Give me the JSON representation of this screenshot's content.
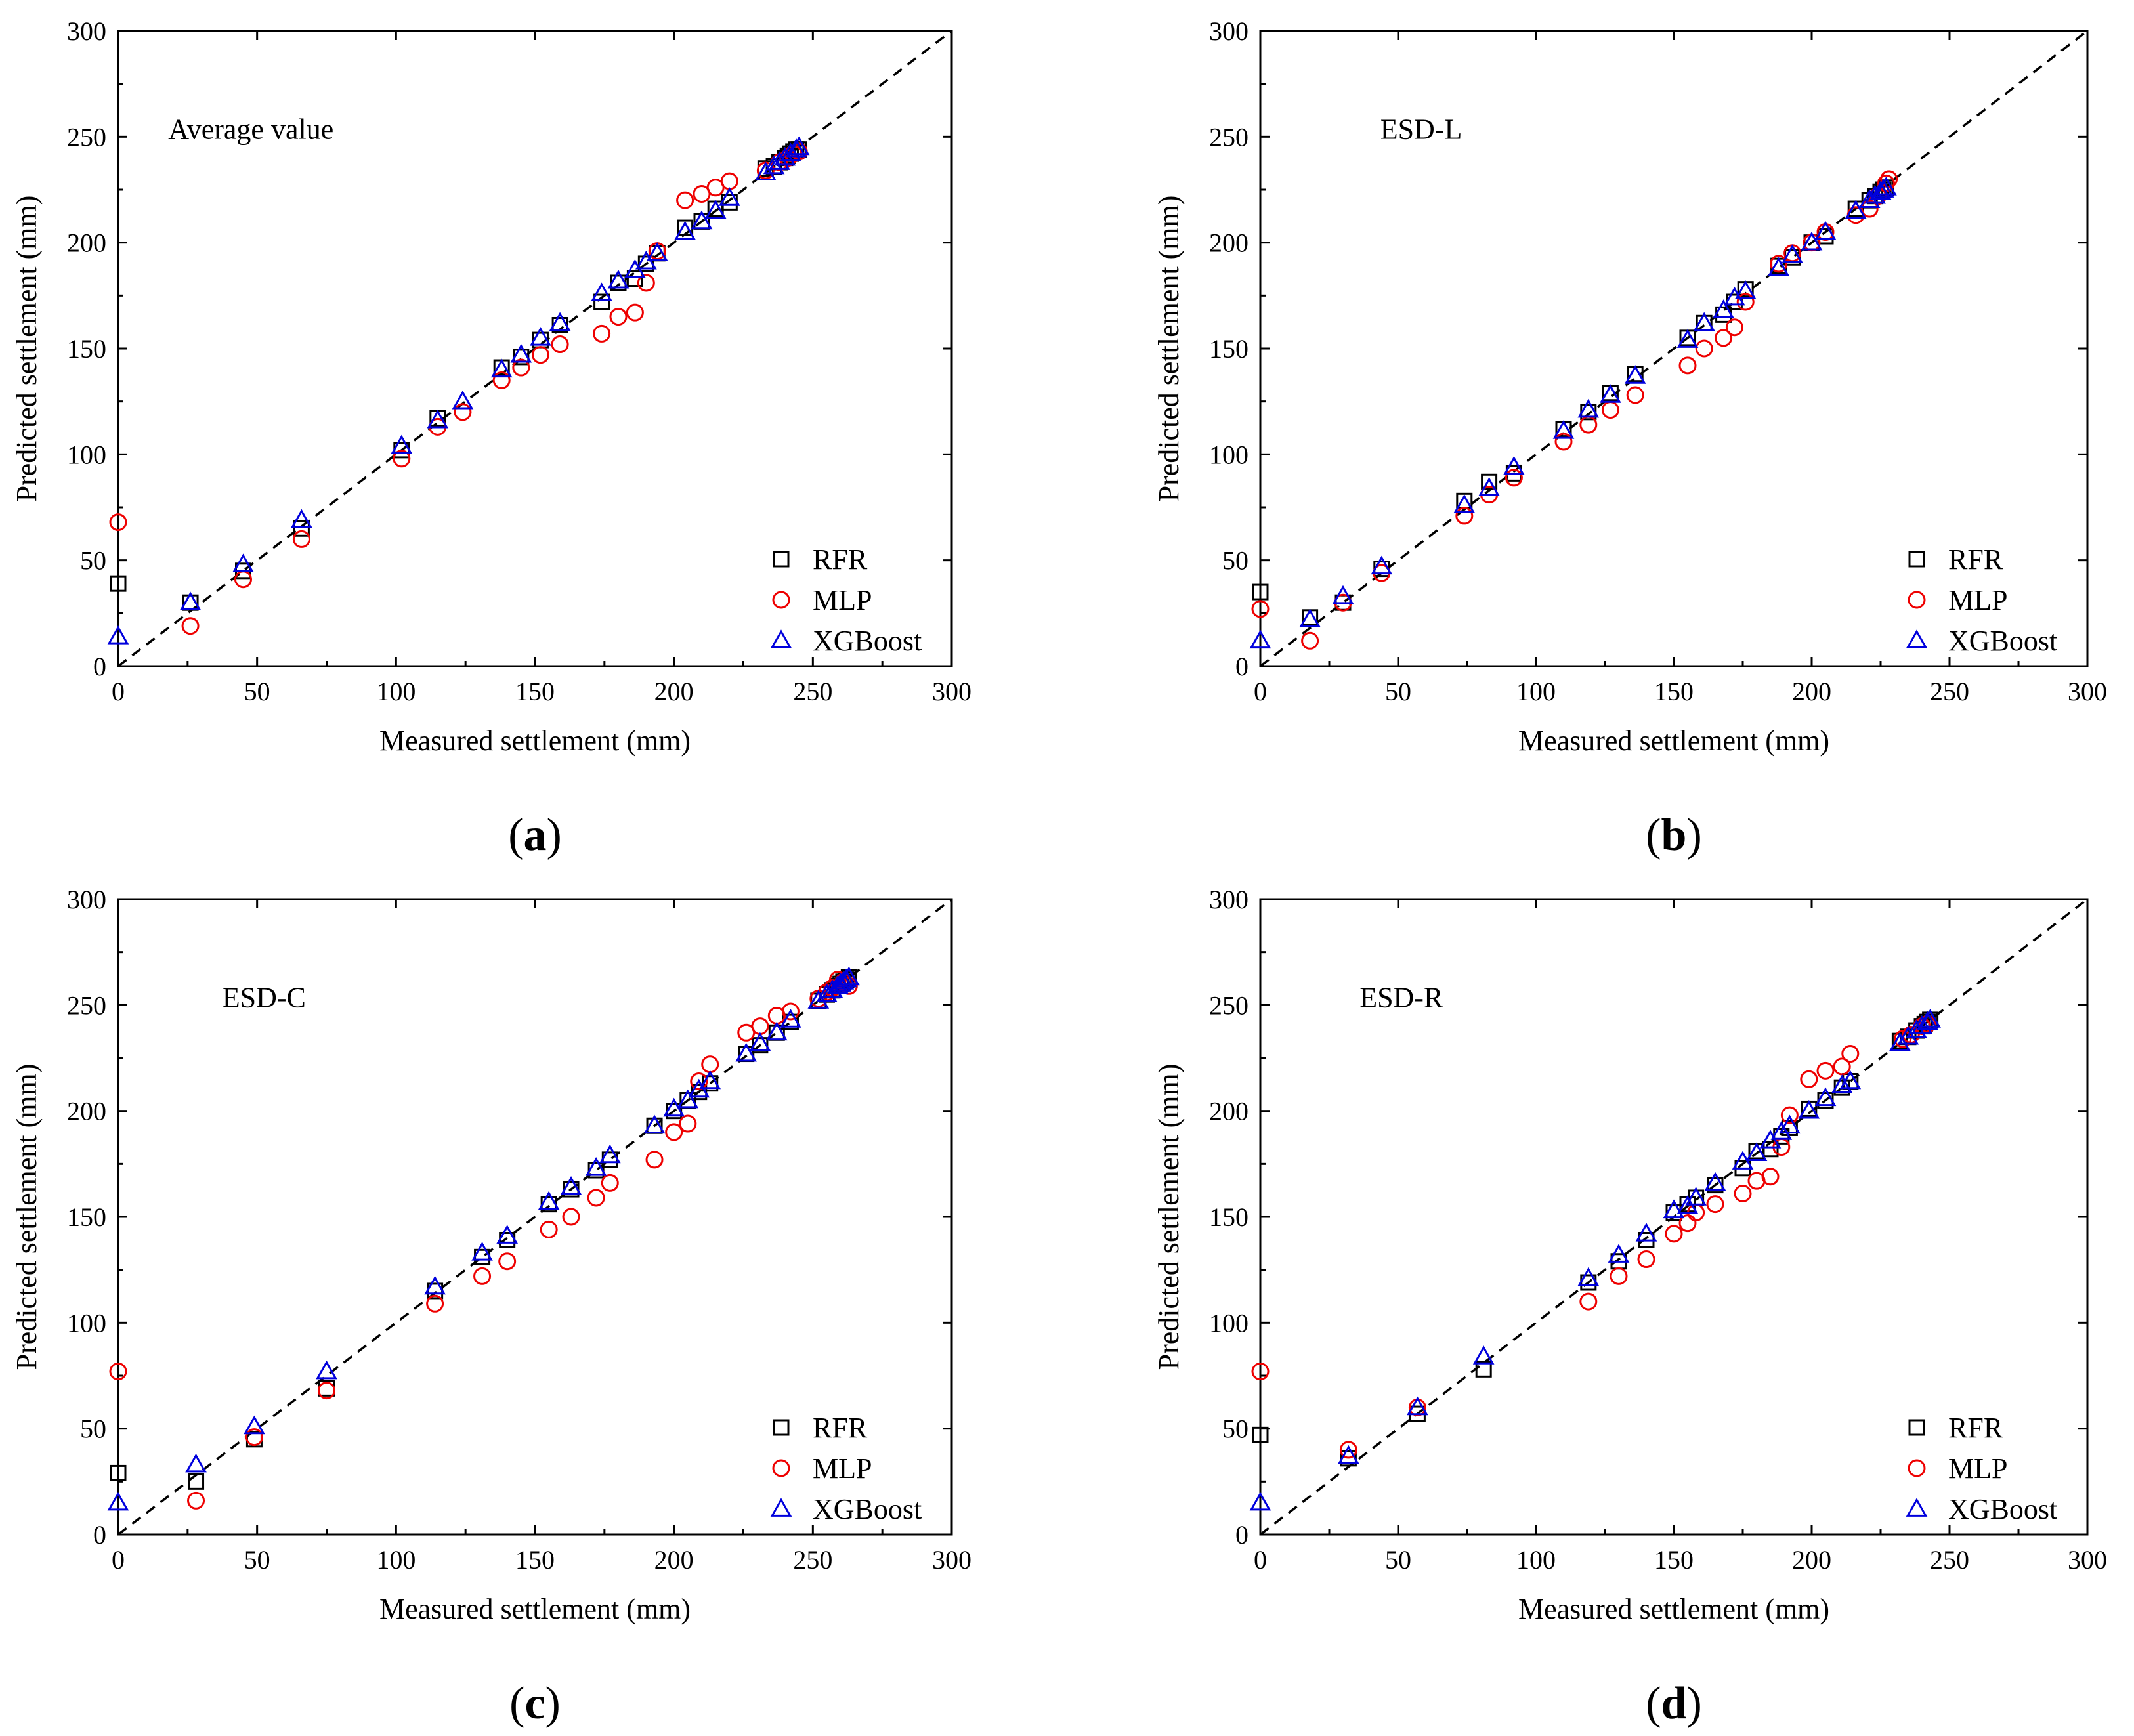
{
  "colors": {
    "RFR": "#000000",
    "MLP": "#ee0000",
    "XGBoost": "#0000dd",
    "diag": "#000000"
  },
  "chart_data": [
    {
      "id": "a",
      "type": "scatter",
      "panel_label": "a",
      "annotation": "Average value",
      "xlabel": "Measured settlement (mm)",
      "ylabel": "Predicted settlement (mm)",
      "xlim": [
        0,
        300
      ],
      "ylim": [
        0,
        300
      ],
      "xticks": [
        "0",
        "50",
        "100",
        "150",
        "200",
        "250",
        "300"
      ],
      "yticks": [
        "0",
        "50",
        "100",
        "150",
        "200",
        "250",
        "300"
      ],
      "reference_line": "y = x (dashed)",
      "series": [
        {
          "name": "RFR",
          "marker": "square",
          "x": [
            0,
            26,
            45,
            66,
            102,
            115,
            138,
            145,
            152,
            159,
            174,
            180,
            186,
            190,
            194,
            204,
            210,
            215,
            220,
            233,
            236,
            238,
            240,
            241,
            242,
            243,
            244,
            245
          ],
          "y": [
            39,
            30,
            45,
            65,
            102,
            117,
            141,
            146,
            154,
            161,
            172,
            181,
            183,
            190,
            195,
            207,
            210,
            216,
            219,
            235,
            236,
            238,
            240,
            241,
            242,
            243,
            244,
            244
          ]
        },
        {
          "name": "MLP",
          "marker": "circle",
          "x": [
            0,
            26,
            45,
            66,
            102,
            115,
            124,
            138,
            145,
            152,
            159,
            174,
            180,
            186,
            190,
            194,
            204,
            210,
            215,
            220,
            233,
            238,
            241,
            243,
            245
          ],
          "y": [
            68,
            19,
            41,
            60,
            98,
            113,
            120,
            135,
            141,
            147,
            152,
            157,
            165,
            167,
            181,
            196,
            220,
            223,
            226,
            229,
            234,
            238,
            240,
            242,
            243
          ]
        },
        {
          "name": "XGBoost",
          "marker": "triangle",
          "x": [
            0,
            26,
            45,
            66,
            102,
            115,
            124,
            138,
            145,
            152,
            159,
            174,
            180,
            186,
            190,
            194,
            204,
            210,
            215,
            220,
            233,
            236,
            238,
            240,
            242,
            244,
            245
          ],
          "y": [
            14,
            30,
            48,
            69,
            104,
            116,
            125,
            140,
            147,
            155,
            162,
            176,
            182,
            187,
            191,
            195,
            205,
            210,
            215,
            221,
            233,
            236,
            238,
            240,
            242,
            244,
            245
          ]
        }
      ]
    },
    {
      "id": "b",
      "type": "scatter",
      "panel_label": "b",
      "annotation": "ESD-L",
      "xlabel": "Measured settlement (mm)",
      "ylabel": "Predicted settlement (mm)",
      "xlim": [
        0,
        300
      ],
      "ylim": [
        0,
        300
      ],
      "xticks": [
        "0",
        "50",
        "100",
        "150",
        "200",
        "250",
        "300"
      ],
      "yticks": [
        "0",
        "50",
        "100",
        "150",
        "200",
        "250",
        "300"
      ],
      "reference_line": "y = x (dashed)",
      "series": [
        {
          "name": "RFR",
          "marker": "square",
          "x": [
            0,
            18,
            30,
            44,
            74,
            83,
            92,
            110,
            119,
            127,
            136,
            155,
            161,
            168,
            172,
            176,
            188,
            193,
            200,
            205,
            216,
            221,
            223,
            225,
            226,
            227
          ],
          "y": [
            35,
            23,
            30,
            46,
            78,
            87,
            91,
            112,
            120,
            129,
            138,
            155,
            162,
            166,
            172,
            178,
            189,
            193,
            200,
            203,
            216,
            220,
            222,
            224,
            225,
            226
          ]
        },
        {
          "name": "MLP",
          "marker": "circle",
          "x": [
            0,
            18,
            30,
            44,
            74,
            83,
            92,
            110,
            119,
            127,
            136,
            155,
            161,
            168,
            172,
            176,
            188,
            193,
            200,
            205,
            216,
            221,
            224,
            227,
            228
          ],
          "y": [
            27,
            12,
            30,
            44,
            71,
            81,
            89,
            106,
            114,
            121,
            128,
            142,
            150,
            155,
            160,
            172,
            190,
            195,
            200,
            205,
            213,
            216,
            222,
            228,
            230
          ]
        },
        {
          "name": "XGBoost",
          "marker": "triangle",
          "x": [
            0,
            18,
            30,
            44,
            74,
            83,
            92,
            110,
            119,
            127,
            136,
            155,
            161,
            168,
            172,
            176,
            188,
            193,
            200,
            205,
            216,
            221,
            223,
            225,
            226,
            227
          ],
          "y": [
            12,
            22,
            33,
            47,
            76,
            84,
            94,
            111,
            121,
            128,
            137,
            154,
            162,
            168,
            174,
            177,
            188,
            194,
            200,
            205,
            215,
            220,
            222,
            224,
            225,
            226
          ]
        }
      ]
    },
    {
      "id": "c",
      "type": "scatter",
      "panel_label": "c",
      "annotation": "ESD-C",
      "xlabel": "Measured settlement (mm)",
      "ylabel": "Predicted settlement (mm)",
      "xlim": [
        0,
        300
      ],
      "ylim": [
        0,
        300
      ],
      "xticks": [
        "0",
        "50",
        "100",
        "150",
        "200",
        "250",
        "300"
      ],
      "yticks": [
        "0",
        "50",
        "100",
        "150",
        "200",
        "250",
        "300"
      ],
      "reference_line": "y = x (dashed)",
      "series": [
        {
          "name": "RFR",
          "marker": "square",
          "x": [
            0,
            28,
            49,
            75,
            114,
            131,
            140,
            155,
            163,
            172,
            177,
            193,
            200,
            205,
            209,
            213,
            226,
            231,
            237,
            242,
            252,
            255,
            257,
            259,
            260,
            261,
            262,
            263
          ],
          "y": [
            29,
            25,
            45,
            69,
            115,
            131,
            139,
            156,
            163,
            172,
            177,
            193,
            200,
            205,
            209,
            213,
            227,
            231,
            237,
            242,
            252,
            255,
            257,
            259,
            260,
            261,
            262,
            263
          ]
        },
        {
          "name": "MLP",
          "marker": "circle",
          "x": [
            0,
            28,
            49,
            75,
            114,
            131,
            140,
            155,
            163,
            172,
            177,
            193,
            200,
            205,
            209,
            213,
            226,
            231,
            237,
            242,
            252,
            255,
            257,
            259,
            261,
            263
          ],
          "y": [
            77,
            16,
            46,
            68,
            109,
            122,
            129,
            144,
            150,
            159,
            166,
            177,
            190,
            194,
            214,
            222,
            237,
            240,
            245,
            247,
            253,
            256,
            258,
            262,
            261,
            259
          ]
        },
        {
          "name": "XGBoost",
          "marker": "triangle",
          "x": [
            0,
            28,
            49,
            75,
            114,
            131,
            140,
            155,
            163,
            172,
            177,
            193,
            200,
            205,
            209,
            213,
            226,
            231,
            237,
            242,
            252,
            255,
            257,
            259,
            260,
            261,
            262,
            263
          ],
          "y": [
            15,
            33,
            51,
            77,
            117,
            133,
            141,
            157,
            164,
            173,
            179,
            193,
            201,
            205,
            210,
            214,
            227,
            232,
            237,
            243,
            252,
            255,
            257,
            259,
            260,
            261,
            262,
            263
          ]
        }
      ]
    },
    {
      "id": "d",
      "type": "scatter",
      "panel_label": "d",
      "annotation": "ESD-R",
      "xlabel": "Measured settlement (mm)",
      "ylabel": "Predicted settlement (mm)",
      "xlim": [
        0,
        300
      ],
      "ylim": [
        0,
        300
      ],
      "xticks": [
        "0",
        "50",
        "100",
        "150",
        "200",
        "250",
        "300"
      ],
      "yticks": [
        "0",
        "50",
        "100",
        "150",
        "200",
        "250",
        "300"
      ],
      "reference_line": "y = x (dashed)",
      "series": [
        {
          "name": "RFR",
          "marker": "square",
          "x": [
            0,
            32,
            57,
            81,
            119,
            130,
            140,
            150,
            155,
            158,
            165,
            175,
            180,
            185,
            189,
            192,
            199,
            205,
            211,
            214,
            232,
            235,
            238,
            240,
            241,
            242,
            243
          ],
          "y": [
            47,
            36,
            57,
            78,
            119,
            129,
            139,
            152,
            156,
            159,
            165,
            173,
            181,
            182,
            188,
            192,
            201,
            205,
            211,
            214,
            233,
            235,
            238,
            240,
            241,
            242,
            243
          ]
        },
        {
          "name": "MLP",
          "marker": "circle",
          "x": [
            0,
            32,
            57,
            119,
            130,
            140,
            150,
            155,
            158,
            165,
            175,
            180,
            185,
            189,
            192,
            199,
            205,
            211,
            214,
            233,
            236,
            240,
            242
          ],
          "y": [
            77,
            40,
            60,
            110,
            122,
            130,
            142,
            147,
            152,
            156,
            161,
            167,
            169,
            183,
            198,
            215,
            219,
            221,
            227,
            234,
            236,
            240,
            241
          ]
        },
        {
          "name": "XGBoost",
          "marker": "triangle",
          "x": [
            0,
            32,
            57,
            81,
            119,
            130,
            140,
            150,
            155,
            158,
            165,
            175,
            180,
            185,
            189,
            192,
            199,
            205,
            211,
            214,
            232,
            235,
            238,
            240,
            242,
            243
          ],
          "y": [
            15,
            37,
            60,
            84,
            121,
            132,
            142,
            153,
            155,
            159,
            166,
            176,
            180,
            186,
            190,
            193,
            200,
            206,
            212,
            214,
            232,
            235,
            238,
            240,
            242,
            243
          ]
        }
      ]
    }
  ]
}
